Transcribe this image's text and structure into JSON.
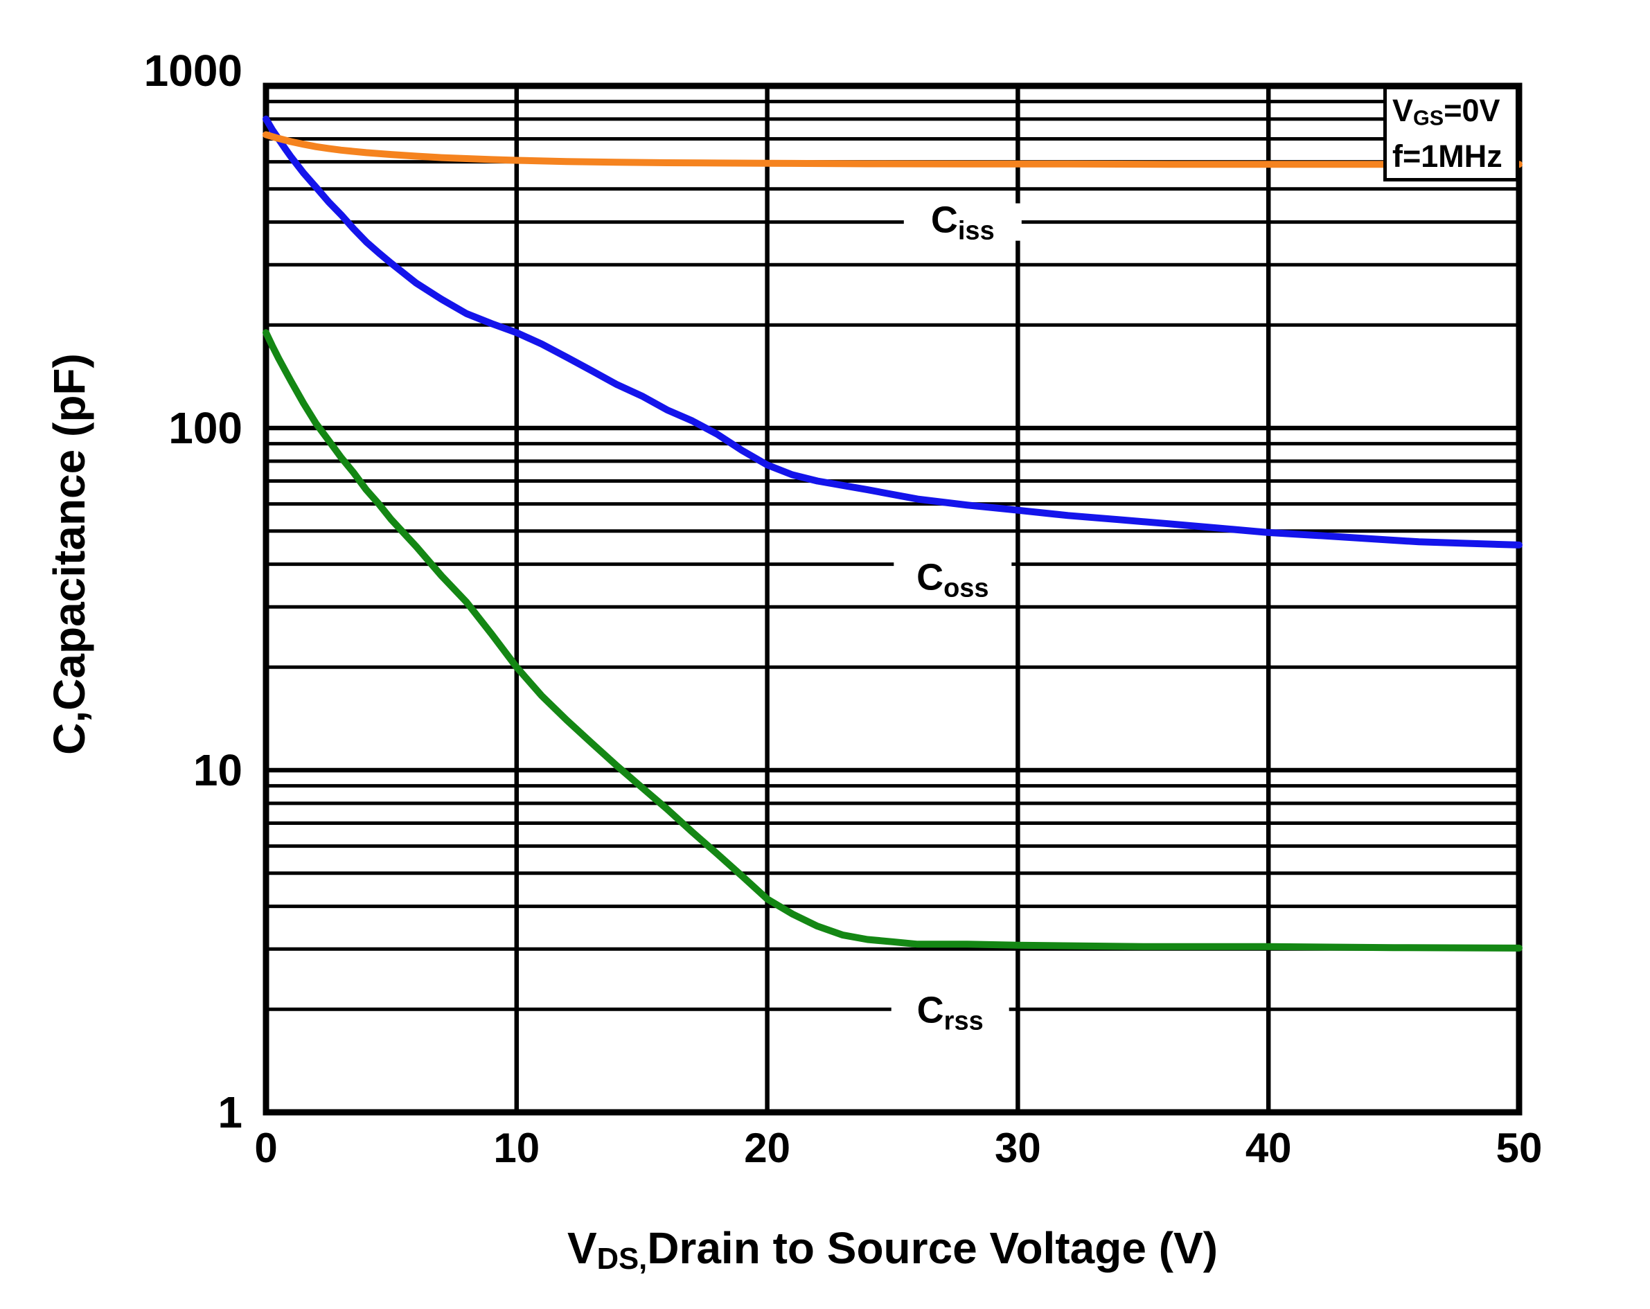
{
  "chart_data": {
    "type": "line",
    "title": "",
    "xlabel_main": "V",
    "xlabel_sub": "DS,",
    "xlabel_rest": "Drain to Source Voltage (V)",
    "ylabel": "C,Capacitance (pF)",
    "x_axis": {
      "min": 0,
      "max": 50,
      "ticks": [
        0,
        10,
        20,
        30,
        40,
        50
      ],
      "gridlines": [
        10,
        20,
        30,
        40
      ],
      "scale": "linear"
    },
    "y_axis": {
      "min": 1,
      "max": 1000,
      "ticks": [
        1000,
        100,
        10,
        1
      ],
      "major_gridlines": [
        100,
        10
      ],
      "minor_multipliers": [
        2,
        3,
        4,
        5,
        6,
        7,
        8,
        9
      ],
      "minor_decades": [
        1,
        10,
        100
      ],
      "scale": "log",
      "grid": true
    },
    "annotation": {
      "line1_main": "V",
      "line1_sub": "GS",
      "line1_rest": "=0V",
      "line2": "f=1MHz"
    },
    "colors": {
      "ciss": "#F5831F",
      "coss": "#1414EB",
      "crss": "#148714",
      "grid": "#000000",
      "frame": "#000000"
    },
    "series": [
      {
        "name": "Ciss",
        "label_main": "C",
        "label_sub": "iss",
        "color_key": "ciss",
        "label_pos": {
          "x": 27.8,
          "v": 400,
          "dy": -4
        },
        "points": [
          [
            0,
            720
          ],
          [
            0.5,
            702
          ],
          [
            1,
            687
          ],
          [
            1.5,
            675
          ],
          [
            2,
            664
          ],
          [
            2.5,
            656
          ],
          [
            3,
            649
          ],
          [
            4,
            638
          ],
          [
            5,
            630
          ],
          [
            6,
            623
          ],
          [
            7,
            617
          ],
          [
            8,
            613
          ],
          [
            9,
            609
          ],
          [
            10,
            606
          ],
          [
            12,
            601
          ],
          [
            14,
            598
          ],
          [
            16,
            596
          ],
          [
            18,
            595
          ],
          [
            20,
            594
          ],
          [
            24,
            592
          ],
          [
            28,
            591
          ],
          [
            32,
            591
          ],
          [
            36,
            590
          ],
          [
            40,
            590
          ],
          [
            45,
            590
          ],
          [
            50,
            590
          ]
        ]
      },
      {
        "name": "Coss",
        "label_main": "C",
        "label_sub": "oss",
        "color_key": "coss",
        "label_pos": {
          "x": 27.4,
          "v": 40,
          "dy": 18
        },
        "points": [
          [
            0,
            800
          ],
          [
            0.25,
            745
          ],
          [
            0.5,
            700
          ],
          [
            0.75,
            658
          ],
          [
            1,
            620
          ],
          [
            1.5,
            556
          ],
          [
            2,
            505
          ],
          [
            2.5,
            458
          ],
          [
            3,
            420
          ],
          [
            3.5,
            382
          ],
          [
            4,
            350
          ],
          [
            4.5,
            325
          ],
          [
            5,
            303
          ],
          [
            6,
            265
          ],
          [
            7,
            238
          ],
          [
            8,
            216
          ],
          [
            9,
            202
          ],
          [
            10,
            190
          ],
          [
            11,
            176
          ],
          [
            12,
            161
          ],
          [
            13,
            147
          ],
          [
            14,
            134
          ],
          [
            15,
            124
          ],
          [
            16,
            113
          ],
          [
            17,
            105
          ],
          [
            18,
            96
          ],
          [
            19,
            86
          ],
          [
            20,
            78
          ],
          [
            21,
            73
          ],
          [
            22,
            70
          ],
          [
            24,
            66
          ],
          [
            26,
            62
          ],
          [
            28,
            59.5
          ],
          [
            30,
            57.5
          ],
          [
            32,
            55.5
          ],
          [
            34,
            54
          ],
          [
            36,
            52.5
          ],
          [
            38,
            51
          ],
          [
            40,
            49.5
          ],
          [
            42,
            48.5
          ],
          [
            44,
            47.5
          ],
          [
            46,
            46.5
          ],
          [
            48,
            46
          ],
          [
            50,
            45.5
          ]
        ]
      },
      {
        "name": "Crss",
        "label_main": "C",
        "label_sub": "rss",
        "color_key": "crss",
        "label_pos": {
          "x": 27.3,
          "v": 2,
          "dy": 0
        },
        "points": [
          [
            0,
            190
          ],
          [
            0.25,
            174
          ],
          [
            0.5,
            160
          ],
          [
            0.75,
            148
          ],
          [
            1,
            137
          ],
          [
            1.5,
            118
          ],
          [
            2,
            103
          ],
          [
            2.5,
            92
          ],
          [
            3,
            82
          ],
          [
            3.5,
            74
          ],
          [
            4,
            66
          ],
          [
            4.5,
            60
          ],
          [
            5,
            54
          ],
          [
            6,
            45
          ],
          [
            7,
            37
          ],
          [
            8,
            31
          ],
          [
            9,
            25
          ],
          [
            10,
            20
          ],
          [
            11,
            16.5
          ],
          [
            12,
            14
          ],
          [
            13,
            12
          ],
          [
            14,
            10.3
          ],
          [
            15,
            8.9
          ],
          [
            16,
            7.7
          ],
          [
            17,
            6.6
          ],
          [
            18,
            5.7
          ],
          [
            19,
            4.9
          ],
          [
            20,
            4.2
          ],
          [
            21,
            3.8
          ],
          [
            22,
            3.5
          ],
          [
            23,
            3.3
          ],
          [
            24,
            3.2
          ],
          [
            25,
            3.15
          ],
          [
            26,
            3.1
          ],
          [
            28,
            3.1
          ],
          [
            30,
            3.08
          ],
          [
            35,
            3.05
          ],
          [
            40,
            3.05
          ],
          [
            45,
            3.03
          ],
          [
            50,
            3.02
          ]
        ]
      }
    ],
    "legend_position": "top-right"
  }
}
